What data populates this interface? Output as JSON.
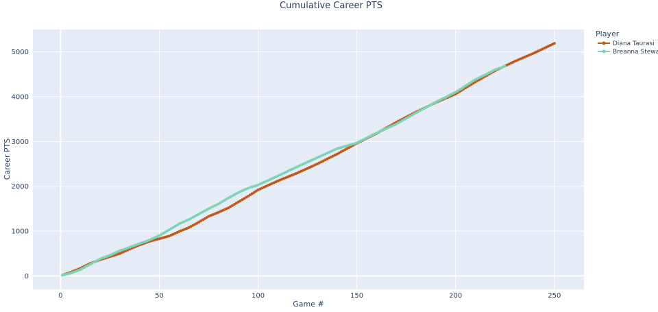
{
  "chart_data": {
    "type": "line",
    "title": "Cumulative Career PTS",
    "xlabel": "Game #",
    "ylabel": "Career PTS",
    "xlim": [
      -14,
      265
    ],
    "ylim": [
      -300,
      5500
    ],
    "x_ticks": [
      0,
      50,
      100,
      150,
      200,
      250
    ],
    "y_ticks": [
      0,
      1000,
      2000,
      3000,
      4000,
      5000
    ],
    "grid": true,
    "plot_bg": "#e5ecf6",
    "legend": {
      "title": "Player",
      "placement": "right"
    },
    "series": [
      {
        "name": "Diana Taurasi",
        "color": "#c1581a",
        "games": 250,
        "points": [
          [
            1,
            20
          ],
          [
            5,
            80
          ],
          [
            10,
            170
          ],
          [
            15,
            280
          ],
          [
            20,
            360
          ],
          [
            25,
            430
          ],
          [
            30,
            500
          ],
          [
            35,
            600
          ],
          [
            40,
            690
          ],
          [
            45,
            770
          ],
          [
            50,
            830
          ],
          [
            55,
            890
          ],
          [
            60,
            990
          ],
          [
            65,
            1080
          ],
          [
            70,
            1200
          ],
          [
            75,
            1330
          ],
          [
            80,
            1420
          ],
          [
            85,
            1520
          ],
          [
            90,
            1650
          ],
          [
            95,
            1780
          ],
          [
            100,
            1920
          ],
          [
            110,
            2120
          ],
          [
            120,
            2300
          ],
          [
            130,
            2500
          ],
          [
            140,
            2720
          ],
          [
            150,
            2960
          ],
          [
            160,
            3180
          ],
          [
            170,
            3430
          ],
          [
            180,
            3660
          ],
          [
            190,
            3870
          ],
          [
            200,
            4060
          ],
          [
            210,
            4330
          ],
          [
            220,
            4580
          ],
          [
            230,
            4790
          ],
          [
            240,
            4980
          ],
          [
            250,
            5190
          ]
        ]
      },
      {
        "name": "Breanna Stewart",
        "color": "#7dd3b6",
        "games": 225,
        "points": [
          [
            1,
            15
          ],
          [
            5,
            60
          ],
          [
            10,
            140
          ],
          [
            15,
            260
          ],
          [
            20,
            380
          ],
          [
            25,
            460
          ],
          [
            30,
            560
          ],
          [
            35,
            640
          ],
          [
            40,
            720
          ],
          [
            45,
            800
          ],
          [
            50,
            900
          ],
          [
            55,
            1030
          ],
          [
            60,
            1160
          ],
          [
            65,
            1260
          ],
          [
            70,
            1380
          ],
          [
            75,
            1500
          ],
          [
            80,
            1610
          ],
          [
            85,
            1740
          ],
          [
            90,
            1860
          ],
          [
            95,
            1960
          ],
          [
            100,
            2030
          ],
          [
            110,
            2230
          ],
          [
            120,
            2440
          ],
          [
            130,
            2640
          ],
          [
            140,
            2840
          ],
          [
            150,
            2970
          ],
          [
            160,
            3190
          ],
          [
            170,
            3390
          ],
          [
            180,
            3640
          ],
          [
            190,
            3880
          ],
          [
            200,
            4100
          ],
          [
            210,
            4380
          ],
          [
            220,
            4600
          ],
          [
            225,
            4680
          ]
        ]
      }
    ]
  }
}
